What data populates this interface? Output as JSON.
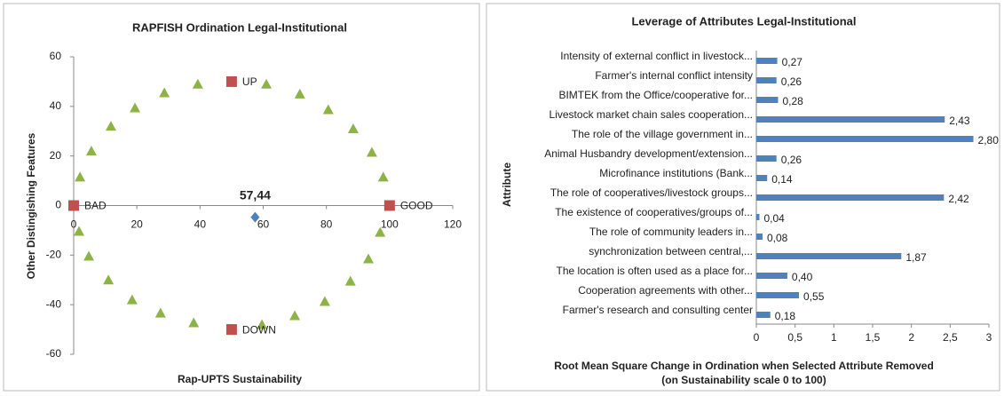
{
  "chart_data": [
    {
      "type": "scatter",
      "title": "RAPFISH Ordination Legal-Institutional",
      "xlabel": "Rap-UPTS Sustainability",
      "ylabel": "Other Distingishing Features",
      "xlim": [
        0,
        120
      ],
      "xticks": [
        0,
        20,
        40,
        60,
        80,
        100,
        120
      ],
      "ylim": [
        -60,
        60
      ],
      "yticks": [
        -60,
        -40,
        -20,
        0,
        20,
        40,
        60
      ],
      "series": [
        {
          "color": "#8db347",
          "marker": "triangle",
          "x": [
            2,
            5.6,
            11.8,
            19.4,
            28.7,
            39.3,
            61,
            71.6,
            80.6,
            88.5,
            94.4,
            98,
            97,
            93.3,
            87.6,
            79.5,
            70,
            59.6,
            38,
            27.5,
            18.5,
            11,
            4.8,
            1.7
          ],
          "values": [
            11.5,
            22,
            32,
            39.4,
            45.5,
            49,
            49,
            45,
            38.7,
            31,
            21.5,
            11.5,
            -10.8,
            -21.5,
            -30.5,
            -38.7,
            -44.4,
            -48,
            -47.3,
            -43.4,
            -38,
            -30,
            -20.4,
            -10.4
          ]
        },
        {
          "color": "#c0504d",
          "marker": "square",
          "x": [
            0,
            100,
            50,
            50
          ],
          "values": [
            0,
            0,
            50,
            -50
          ],
          "point_labels": [
            "BAD",
            "GOOD",
            "UP",
            "DOWN"
          ]
        },
        {
          "color": "#4f81bd",
          "marker": "diamond",
          "x": [
            57.44
          ],
          "values": [
            -4.7
          ],
          "x_labels": [
            "57,44"
          ]
        }
      ]
    },
    {
      "type": "hbar",
      "title": "Leverage of Attributes Legal-Institutional",
      "ylabel": "Attribute",
      "xlabel": [
        "Root Mean Square Change in Ordination when Selected Attribute Removed",
        "(on Sustainability scale 0 to 100)"
      ],
      "color": "#4f81bd",
      "xlim": [
        0,
        3
      ],
      "xticks": [
        0,
        {
          "value": 0.5,
          "label": "0,5"
        },
        1,
        {
          "value": 1.5,
          "label": "1,5"
        },
        2,
        {
          "value": 2.5,
          "label": "2,5"
        },
        3
      ],
      "categories": [
        "Intensity of external conflict in livestock...",
        "Farmer's internal conflict intensity",
        "BIMTEK from the Office/cooperative for...",
        "Livestock market chain sales cooperation...",
        "The role of the village government in...",
        "Animal Husbandry development/extension...",
        "Microfinance institutions (Bank...",
        "The role of cooperatives/livestock groups...",
        "The existence of cooperatives/groups of...",
        "The role of community leaders in...",
        "synchronization between central,...",
        "The location is often used as a place for...",
        "Cooperation agreements with other...",
        "Farmer's research and consulting center"
      ],
      "values": [
        0.27,
        0.26,
        0.28,
        2.43,
        2.8,
        0.26,
        0.14,
        2.42,
        0.04,
        0.08,
        1.87,
        0.4,
        0.55,
        0.18
      ],
      "value_labels": [
        "0,27",
        "0,26",
        "0,28",
        "2,43",
        "2,80",
        "0,26",
        "0,14",
        "2,42",
        "0,04",
        "0,08",
        "1,87",
        "0,40",
        "0,55",
        "0,18"
      ]
    }
  ]
}
